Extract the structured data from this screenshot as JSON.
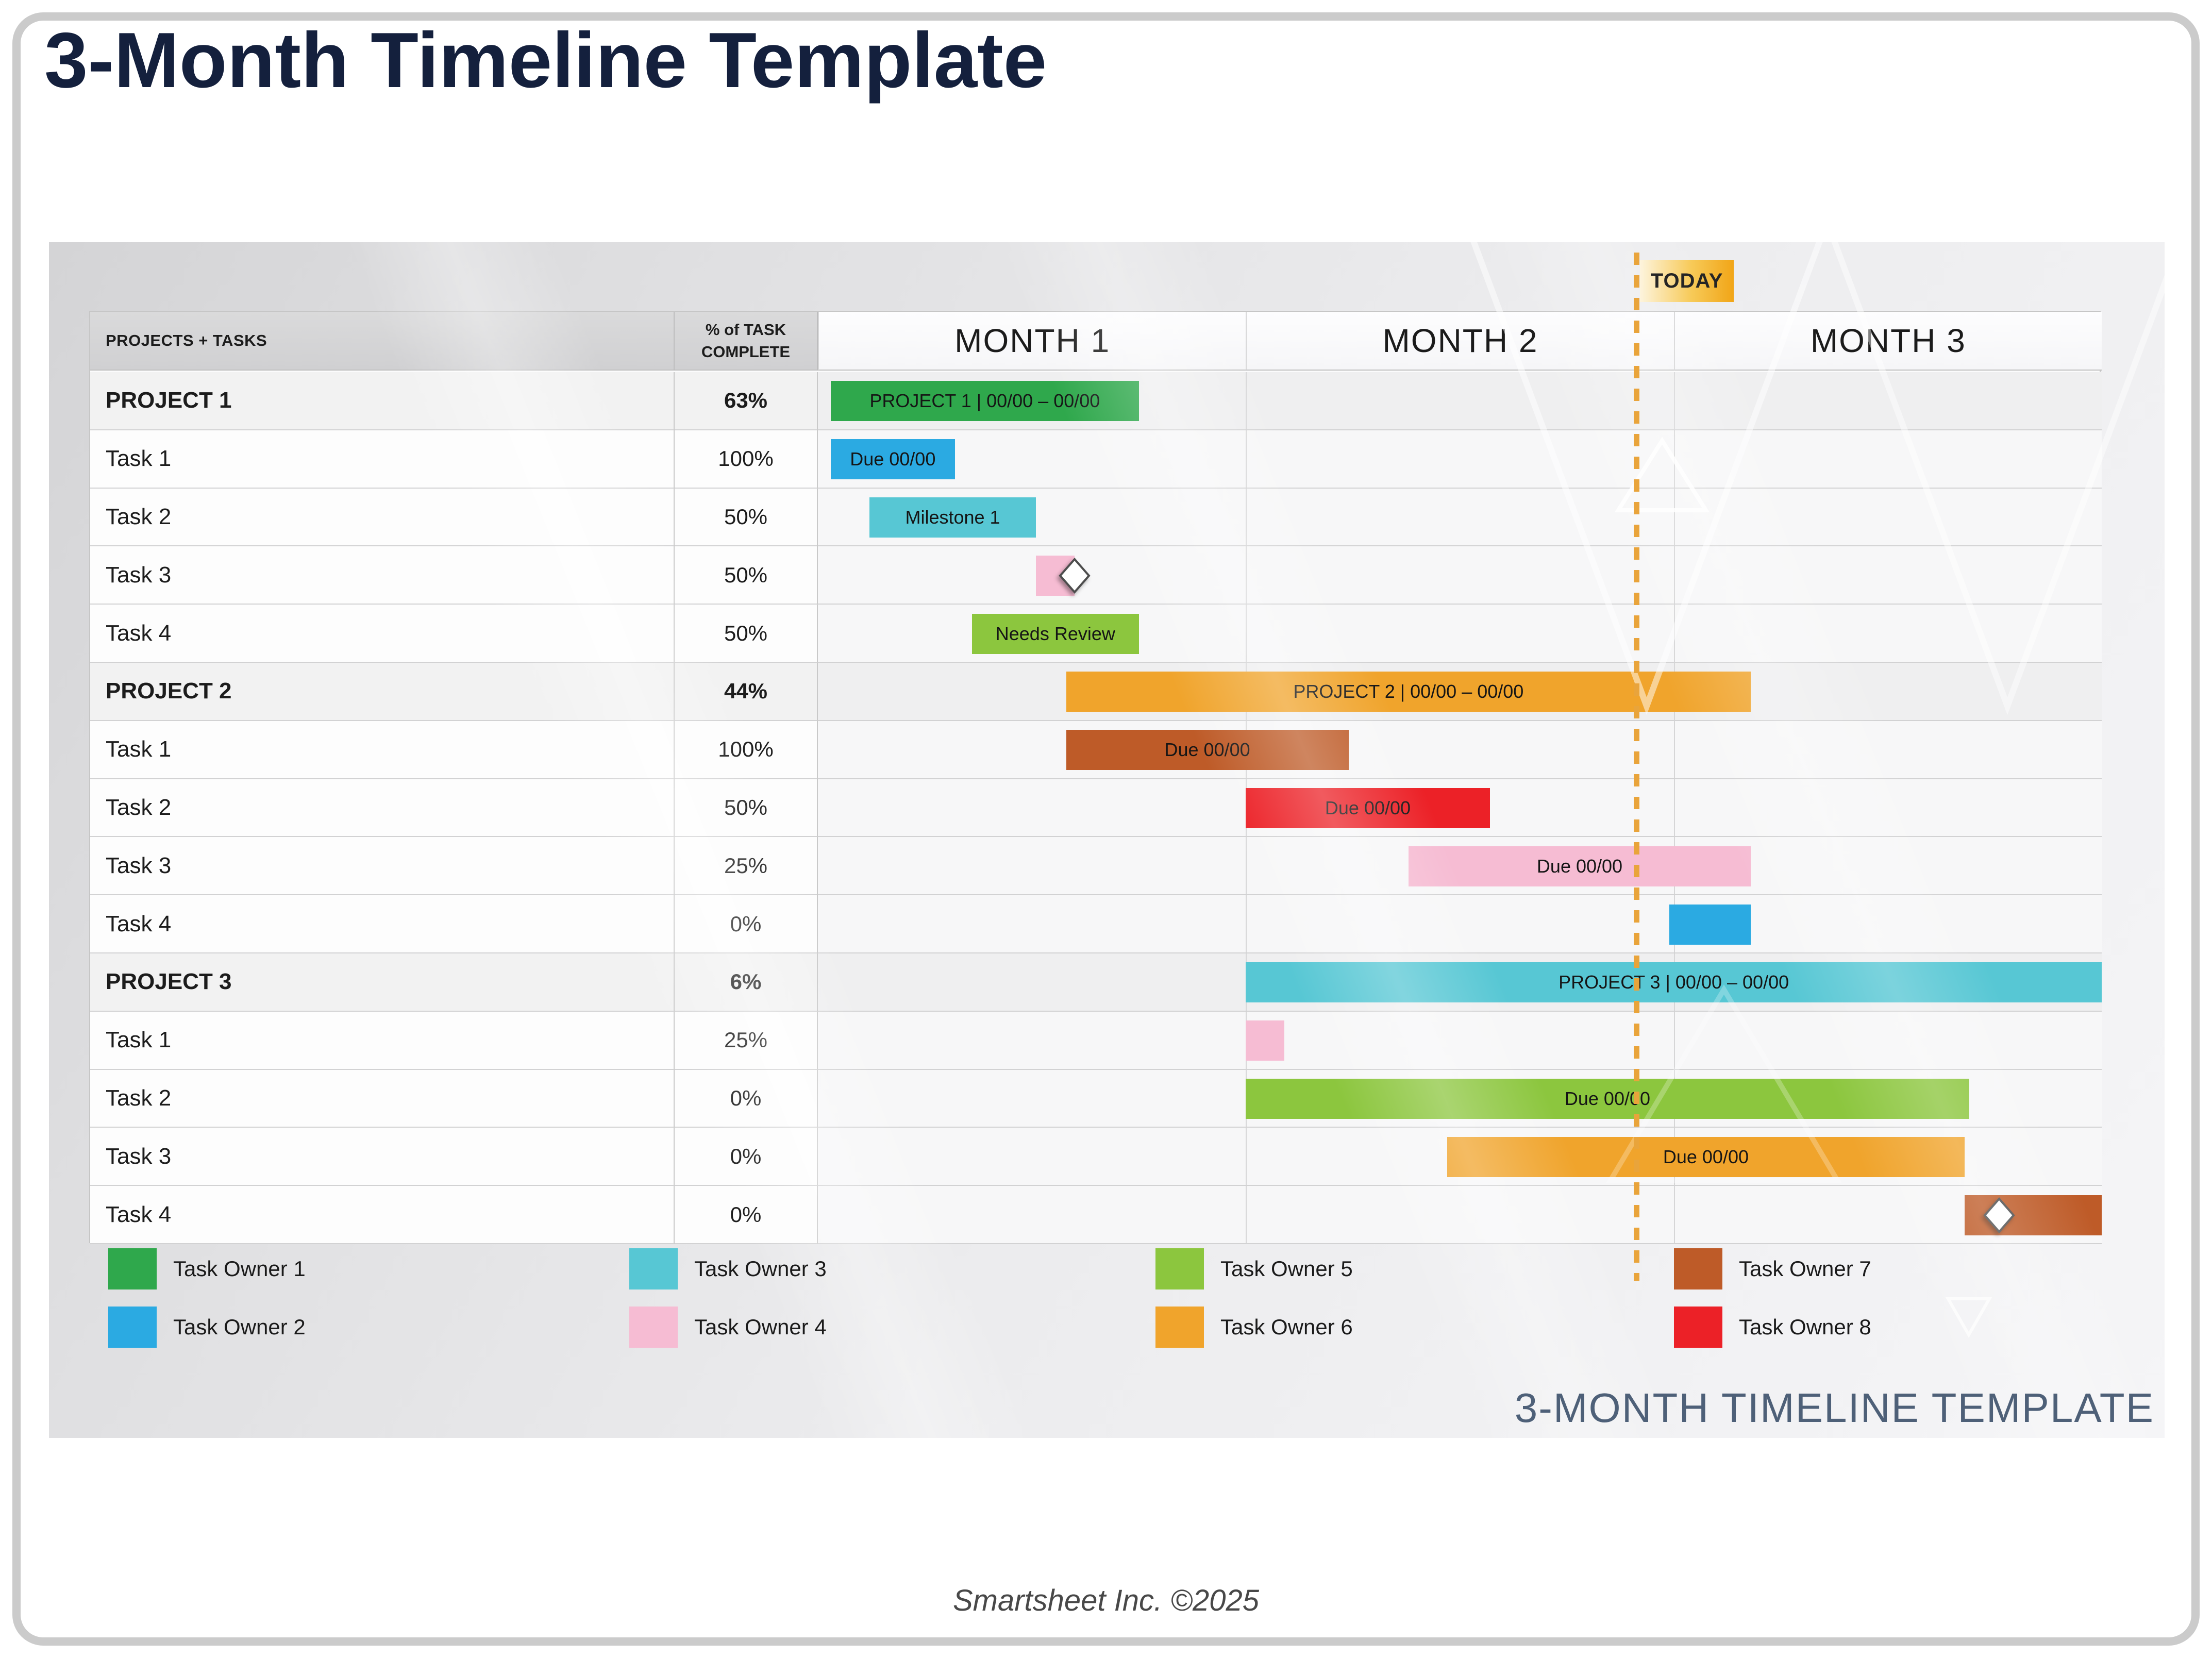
{
  "page": {
    "title": "3-Month Timeline Template",
    "watermark_title": "3-MONTH TIMELINE TEMPLATE",
    "footer_credit": "Smartsheet Inc. ©2025",
    "today_label": "TODAY"
  },
  "table": {
    "header_tasks": "PROJECTS + TASKS",
    "header_pct": "% of TASK COMPLETE"
  },
  "colors": {
    "owner1": "#2fa84c",
    "owner2": "#2baae2",
    "owner3": "#57c7d4",
    "owner4": "#f6bcd3",
    "owner5": "#8cc63e",
    "owner6": "#f0a42c",
    "owner7": "#be5b28",
    "owner8": "#ec2127",
    "today_line": "#e9a43b",
    "today_badge_gradient_start": "#fdf4dd",
    "today_badge_gradient_end": "#f1a517",
    "title_navy": "#14203d",
    "watermark_slate": "#4e6078"
  },
  "legend": [
    {
      "label": "Task Owner 1",
      "color": "owner1"
    },
    {
      "label": "Task Owner 2",
      "color": "owner2"
    },
    {
      "label": "Task Owner 3",
      "color": "owner3"
    },
    {
      "label": "Task Owner 4",
      "color": "owner4"
    },
    {
      "label": "Task Owner 5",
      "color": "owner5"
    },
    {
      "label": "Task Owner 6",
      "color": "owner6"
    },
    {
      "label": "Task Owner 7",
      "color": "owner7"
    },
    {
      "label": "Task Owner 8",
      "color": "owner8"
    }
  ],
  "chart_data": {
    "type": "gantt",
    "title": "3-Month Timeline Template",
    "months": [
      "MONTH 1",
      "MONTH 2",
      "MONTH 3"
    ],
    "axis_unit": "months (0 = start of Month 1, 3 = end of Month 3)",
    "today_position_months": 1.915,
    "rows": [
      {
        "name": "PROJECT 1",
        "pct": "63%",
        "row_type": "project",
        "bar": {
          "start": 0.03,
          "end": 0.75,
          "color": "owner1",
          "label": "PROJECT 1  |  00/00 – 00/00"
        }
      },
      {
        "name": "Task 1",
        "pct": "100%",
        "row_type": "task",
        "bar": {
          "start": 0.03,
          "end": 0.32,
          "color": "owner2",
          "label": "Due 00/00"
        }
      },
      {
        "name": "Task 2",
        "pct": "50%",
        "row_type": "task",
        "bar": {
          "start": 0.12,
          "end": 0.51,
          "color": "owner3",
          "label": "Milestone 1"
        }
      },
      {
        "name": "Task 3",
        "pct": "50%",
        "row_type": "task",
        "bar": {
          "start": 0.51,
          "end": 0.6,
          "color": "owner4",
          "label": ""
        },
        "milestone_at": 0.6
      },
      {
        "name": "Task 4",
        "pct": "50%",
        "row_type": "task",
        "bar": {
          "start": 0.36,
          "end": 0.75,
          "color": "owner5",
          "label": "Needs Review"
        }
      },
      {
        "name": "PROJECT 2",
        "pct": "44%",
        "row_type": "project",
        "bar": {
          "start": 0.58,
          "end": 2.18,
          "color": "owner6",
          "label": "PROJECT 2  |  00/00 – 00/00"
        }
      },
      {
        "name": "Task 1",
        "pct": "100%",
        "row_type": "task",
        "bar": {
          "start": 0.58,
          "end": 1.24,
          "color": "owner7",
          "label": "Due 00/00"
        }
      },
      {
        "name": "Task 2",
        "pct": "50%",
        "row_type": "task",
        "bar": {
          "start": 1.0,
          "end": 1.57,
          "color": "owner8",
          "label": "Due 00/00"
        }
      },
      {
        "name": "Task 3",
        "pct": "25%",
        "row_type": "task",
        "bar": {
          "start": 1.38,
          "end": 2.18,
          "color": "owner4",
          "label": "Due 00/00"
        }
      },
      {
        "name": "Task 4",
        "pct": "0%",
        "row_type": "task",
        "bar": {
          "start": 1.99,
          "end": 2.18,
          "color": "owner2",
          "label": ""
        }
      },
      {
        "name": "PROJECT 3",
        "pct": "6%",
        "row_type": "project",
        "bar": {
          "start": 1.0,
          "end": 3.0,
          "color": "owner3",
          "label": "PROJECT 3  |  00/00 – 00/00"
        }
      },
      {
        "name": "Task 1",
        "pct": "25%",
        "row_type": "task",
        "bar": {
          "start": 1.0,
          "end": 1.09,
          "color": "owner4",
          "label": ""
        }
      },
      {
        "name": "Task 2",
        "pct": "0%",
        "row_type": "task",
        "bar": {
          "start": 1.0,
          "end": 2.69,
          "color": "owner5",
          "label": "Due 00/00"
        }
      },
      {
        "name": "Task 3",
        "pct": "0%",
        "row_type": "task",
        "bar": {
          "start": 1.47,
          "end": 2.68,
          "color": "owner6",
          "label": "Due 00/00"
        }
      },
      {
        "name": "Task 4",
        "pct": "0%",
        "row_type": "task",
        "bar": {
          "start": 2.68,
          "end": 3.0,
          "color": "owner7",
          "label": ""
        },
        "milestone_at": 2.76
      }
    ]
  }
}
